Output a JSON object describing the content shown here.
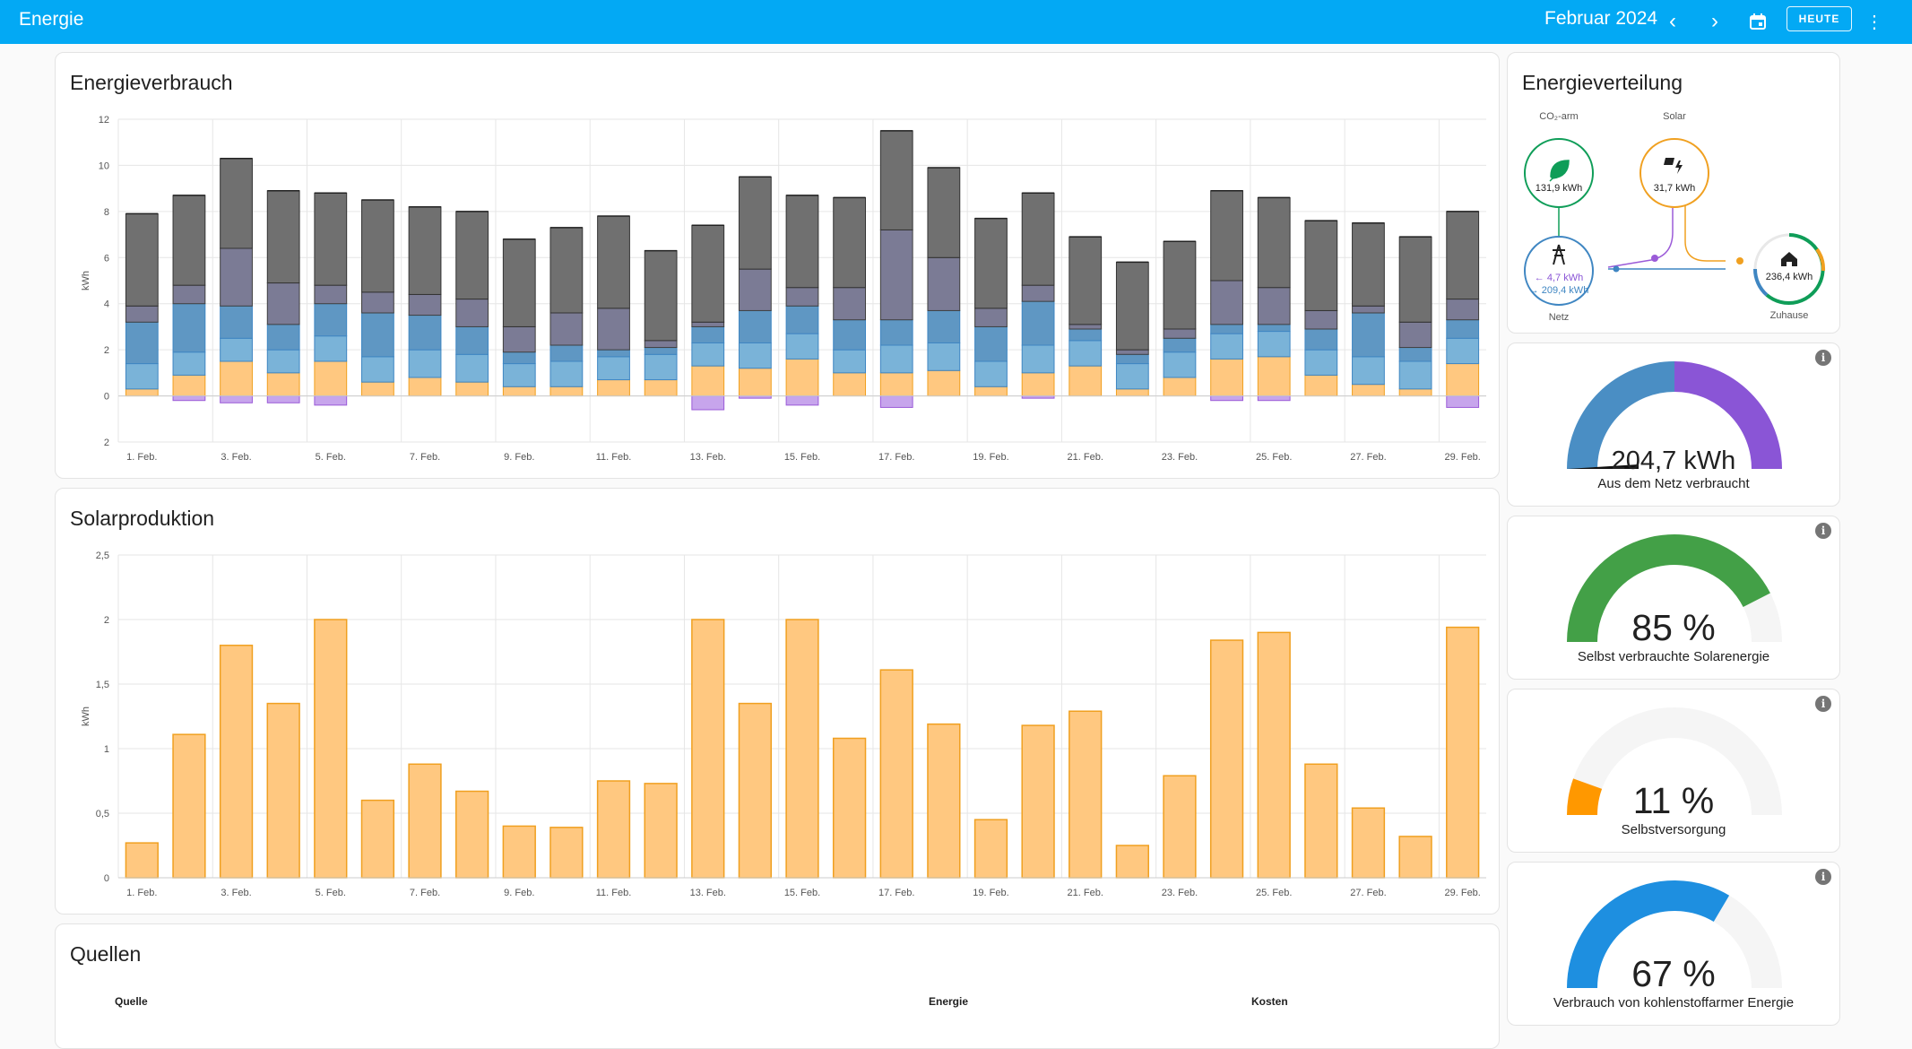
{
  "header": {
    "title": "Energie",
    "period": "Februar 2024",
    "today_label": "HEUTE"
  },
  "consumption": {
    "title": "Energieverbrauch",
    "chart_data": {
      "type": "bar",
      "stacked": true,
      "ylabel": "kWh",
      "ylim": [
        -2,
        12
      ],
      "yticks": [
        {
          "v": 12,
          "label": "12"
        },
        {
          "v": 10,
          "label": "10"
        },
        {
          "v": 8,
          "label": "8"
        },
        {
          "v": 6,
          "label": "6"
        },
        {
          "v": 4,
          "label": "4"
        },
        {
          "v": 2,
          "label": "2"
        },
        {
          "v": 0,
          "label": "0"
        },
        {
          "v": -2,
          "label": "2"
        }
      ],
      "categories": [
        "1. Feb.",
        "2. Feb.",
        "3. Feb.",
        "4. Feb.",
        "5. Feb.",
        "6. Feb.",
        "7. Feb.",
        "8. Feb.",
        "9. Feb.",
        "10. Feb.",
        "11. Feb.",
        "12. Feb.",
        "13. Feb.",
        "14. Feb.",
        "15. Feb.",
        "16. Feb.",
        "17. Feb.",
        "18. Feb.",
        "19. Feb.",
        "20. Feb.",
        "21. Feb.",
        "22. Feb.",
        "23. Feb.",
        "24. Feb.",
        "25. Feb.",
        "26. Feb.",
        "27. Feb.",
        "28. Feb.",
        "29. Feb."
      ],
      "xtick_labels": [
        "1. Feb.",
        "",
        "3. Feb.",
        "",
        "5. Feb.",
        "",
        "7. Feb.",
        "",
        "9. Feb.",
        "",
        "11. Feb.",
        "",
        "13. Feb.",
        "",
        "15. Feb.",
        "",
        "17. Feb.",
        "",
        "19. Feb.",
        "",
        "21. Feb.",
        "",
        "23. Feb.",
        "",
        "25. Feb.",
        "",
        "27. Feb.",
        "",
        "29. Feb."
      ],
      "series": [
        {
          "key": "solar",
          "color": "#ffc880",
          "stroke": "#f0a020",
          "values": [
            0.3,
            0.9,
            1.5,
            1.0,
            1.5,
            0.6,
            0.8,
            0.6,
            0.4,
            0.4,
            0.7,
            0.7,
            1.3,
            1.2,
            1.6,
            1.0,
            1.0,
            1.1,
            0.4,
            1.0,
            1.3,
            0.3,
            0.8,
            1.6,
            1.7,
            0.9,
            0.5,
            0.3,
            1.4
          ]
        },
        {
          "key": "grid_light",
          "color": "#7ab3d8",
          "stroke": "#3f86c2",
          "values": [
            1.1,
            1.0,
            1.0,
            1.0,
            1.1,
            1.1,
            1.2,
            1.2,
            1.0,
            1.1,
            1.0,
            1.1,
            1.0,
            1.1,
            1.1,
            1.0,
            1.2,
            1.2,
            1.1,
            1.2,
            1.1,
            1.1,
            1.1,
            1.1,
            1.1,
            1.1,
            1.2,
            1.2,
            1.1
          ]
        },
        {
          "key": "grid_dark",
          "color": "#5f97c3",
          "stroke": "#3f86c2",
          "values": [
            1.8,
            2.1,
            1.4,
            1.1,
            1.4,
            1.9,
            1.5,
            1.2,
            0.5,
            0.7,
            0.3,
            0.3,
            0.7,
            1.4,
            1.2,
            1.3,
            1.1,
            1.4,
            1.5,
            1.9,
            0.5,
            0.4,
            0.6,
            0.4,
            0.3,
            0.9,
            1.9,
            0.6,
            0.8
          ]
        },
        {
          "key": "mix",
          "color": "#7b7b95",
          "stroke": "#3f3f3f",
          "values": [
            0.7,
            0.8,
            2.5,
            1.8,
            0.8,
            0.9,
            0.9,
            1.2,
            1.1,
            1.4,
            1.8,
            0.3,
            0.2,
            1.8,
            0.8,
            1.4,
            3.9,
            2.3,
            0.8,
            0.7,
            0.2,
            0.2,
            0.4,
            1.9,
            1.6,
            0.8,
            0.3,
            1.1,
            0.9
          ]
        },
        {
          "key": "grid_other",
          "color": "#707070",
          "stroke": "#333333",
          "values": [
            4.0,
            3.9,
            3.9,
            4.0,
            4.0,
            4.0,
            3.8,
            3.8,
            3.8,
            3.7,
            4.0,
            3.9,
            4.2,
            4.0,
            4.0,
            3.9,
            4.3,
            3.9,
            3.9,
            4.0,
            3.8,
            3.8,
            3.8,
            3.9,
            3.9,
            3.9,
            3.6,
            3.7,
            3.8
          ]
        },
        {
          "key": "export",
          "color": "#c7a5ec",
          "stroke": "#9b5bd8",
          "values": [
            0,
            -0.2,
            -0.3,
            -0.3,
            -0.4,
            0,
            0,
            0,
            0,
            0,
            0,
            0,
            -0.6,
            -0.1,
            -0.4,
            0,
            -0.5,
            0,
            0,
            -0.1,
            0,
            0,
            0,
            -0.2,
            -0.2,
            0,
            0,
            0,
            -0.5
          ]
        }
      ]
    }
  },
  "solar": {
    "title": "Solarproduktion",
    "chart_data": {
      "type": "bar",
      "ylabel": "kWh",
      "ylim": [
        0,
        2.5
      ],
      "yticks": [
        {
          "v": 2.5,
          "label": "2,5"
        },
        {
          "v": 2,
          "label": "2"
        },
        {
          "v": 1.5,
          "label": "1,5"
        },
        {
          "v": 1,
          "label": "1"
        },
        {
          "v": 0.5,
          "label": "0,5"
        },
        {
          "v": 0,
          "label": "0"
        }
      ],
      "categories": [
        "1. Feb.",
        "2. Feb.",
        "3. Feb.",
        "4. Feb.",
        "5. Feb.",
        "6. Feb.",
        "7. Feb.",
        "8. Feb.",
        "9. Feb.",
        "10. Feb.",
        "11. Feb.",
        "12. Feb.",
        "13. Feb.",
        "14. Feb.",
        "15. Feb.",
        "16. Feb.",
        "17. Feb.",
        "18. Feb.",
        "19. Feb.",
        "20. Feb.",
        "21. Feb.",
        "22. Feb.",
        "23. Feb.",
        "24. Feb.",
        "25. Feb.",
        "26. Feb.",
        "27. Feb.",
        "28. Feb.",
        "29. Feb."
      ],
      "xtick_labels": [
        "1. Feb.",
        "",
        "3. Feb.",
        "",
        "5. Feb.",
        "",
        "7. Feb.",
        "",
        "9. Feb.",
        "",
        "11. Feb.",
        "",
        "13. Feb.",
        "",
        "15. Feb.",
        "",
        "17. Feb.",
        "",
        "19. Feb.",
        "",
        "21. Feb.",
        "",
        "23. Feb.",
        "",
        "25. Feb.",
        "",
        "27. Feb.",
        "",
        "29. Feb."
      ],
      "values": [
        0.27,
        1.11,
        1.8,
        1.35,
        2.0,
        0.6,
        0.88,
        0.67,
        0.4,
        0.39,
        0.75,
        0.73,
        2.0,
        1.35,
        2.0,
        1.08,
        1.61,
        1.19,
        0.45,
        1.18,
        1.29,
        0.25,
        0.79,
        1.84,
        1.9,
        0.88,
        0.54,
        0.32,
        1.94
      ],
      "color": "#ffc880",
      "stroke": "#f0a020"
    }
  },
  "sources": {
    "title": "Quellen",
    "columns": [
      "Quelle",
      "Energie",
      "Kosten"
    ]
  },
  "distribution": {
    "title": "Energieverteilung",
    "low_carbon": {
      "label": "CO₂-arm",
      "value": "131,9 kWh",
      "color": "#0f9d58"
    },
    "solar": {
      "label": "Solar",
      "value": "31,7 kWh",
      "color": "#f0a020"
    },
    "grid": {
      "label": "Netz",
      "in": "← 4,7 kWh",
      "out": "→ 209,4 kWh",
      "color": "#3f86c2"
    },
    "home": {
      "label": "Zuhause",
      "value": "236,4 kWh",
      "color": "#0f9d58"
    }
  },
  "gauges": [
    {
      "value": "204,7 kWh",
      "label": "Aus dem Netz verbraucht",
      "fraction": 0.5,
      "style": "split",
      "colors": [
        "#4a8ec4",
        "#8a55d6"
      ]
    },
    {
      "value": "85 %",
      "label": "Selbst verbrauchte Solarenergie",
      "fraction": 0.85,
      "style": "fill",
      "colors": [
        "#43a047",
        "#f5f5f5"
      ]
    },
    {
      "value": "11 %",
      "label": "Selbstversorgung",
      "fraction": 0.11,
      "style": "fill",
      "colors": [
        "#ff9800",
        "#f5f5f5"
      ]
    },
    {
      "value": "67 %",
      "label": "Verbrauch von kohlenstoffarmer Energie",
      "fraction": 0.67,
      "style": "fill",
      "colors": [
        "#1e8fe0",
        "#f5f5f5"
      ]
    }
  ]
}
